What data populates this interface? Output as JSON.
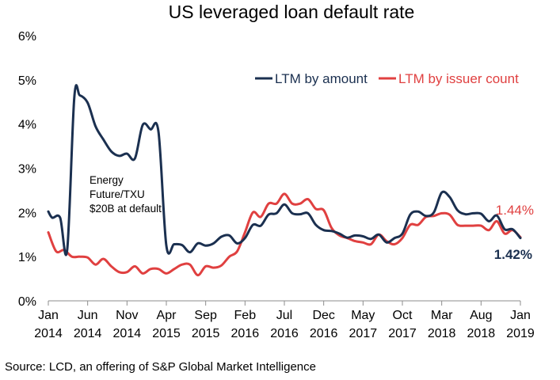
{
  "chart_data": {
    "type": "line",
    "title": "US leveraged loan default rate",
    "source": "Source: LCD, an offering of S&P Global Market Intelligence",
    "y_ticks": [
      "0%",
      "1%",
      "2%",
      "3%",
      "4%",
      "5%",
      "6%"
    ],
    "ylim": [
      0,
      6
    ],
    "xlim": [
      0,
      60
    ],
    "x_ticks": [
      {
        "month": 0,
        "line1": "Jan",
        "line2": "2014"
      },
      {
        "month": 5,
        "line1": "Jun",
        "line2": "2014"
      },
      {
        "month": 10,
        "line1": "Nov",
        "line2": "2014"
      },
      {
        "month": 15,
        "line1": "Apr",
        "line2": "2015"
      },
      {
        "month": 20,
        "line1": "Sep",
        "line2": "2015"
      },
      {
        "month": 25,
        "line1": "Feb",
        "line2": "2016"
      },
      {
        "month": 30,
        "line1": "Jul",
        "line2": "2016"
      },
      {
        "month": 35,
        "line1": "Dec",
        "line2": "2016"
      },
      {
        "month": 40,
        "line1": "May",
        "line2": "2017"
      },
      {
        "month": 45,
        "line1": "Oct",
        "line2": "2017"
      },
      {
        "month": 50,
        "line1": "Mar",
        "line2": "2018"
      },
      {
        "month": 55,
        "line1": "Aug",
        "line2": "2018"
      },
      {
        "month": 60,
        "line1": "Jan",
        "line2": "2019"
      }
    ],
    "legend_position": "top-right",
    "grid": false,
    "series": [
      {
        "name": "LTM by amount",
        "color": "#1b3050",
        "end_label": "1.42%",
        "points": [
          [
            0,
            2.02
          ],
          [
            0.5,
            1.88
          ],
          [
            1.5,
            1.88
          ],
          [
            2.4,
            1.15
          ],
          [
            3.3,
            4.6
          ],
          [
            4,
            4.65
          ],
          [
            5,
            4.48
          ],
          [
            6,
            3.95
          ],
          [
            7,
            3.65
          ],
          [
            8,
            3.38
          ],
          [
            9,
            3.28
          ],
          [
            10,
            3.33
          ],
          [
            11,
            3.22
          ],
          [
            12,
            3.98
          ],
          [
            13,
            3.88
          ],
          [
            14,
            3.82
          ],
          [
            15,
            1.25
          ],
          [
            16,
            1.28
          ],
          [
            17,
            1.26
          ],
          [
            18,
            1.1
          ],
          [
            19,
            1.3
          ],
          [
            20,
            1.25
          ],
          [
            21,
            1.3
          ],
          [
            22,
            1.45
          ],
          [
            23,
            1.48
          ],
          [
            24,
            1.3
          ],
          [
            25,
            1.42
          ],
          [
            26,
            1.72
          ],
          [
            27,
            1.7
          ],
          [
            28,
            1.95
          ],
          [
            29,
            1.98
          ],
          [
            30,
            2.18
          ],
          [
            31,
            1.98
          ],
          [
            32,
            1.96
          ],
          [
            33,
            1.98
          ],
          [
            34,
            1.72
          ],
          [
            35,
            1.6
          ],
          [
            36,
            1.58
          ],
          [
            37,
            1.52
          ],
          [
            38,
            1.43
          ],
          [
            39,
            1.48
          ],
          [
            40,
            1.46
          ],
          [
            41,
            1.4
          ],
          [
            42,
            1.5
          ],
          [
            43,
            1.32
          ],
          [
            44,
            1.42
          ],
          [
            45,
            1.52
          ],
          [
            46,
            1.95
          ],
          [
            47,
            2.02
          ],
          [
            48,
            1.92
          ],
          [
            49,
            2.0
          ],
          [
            50,
            2.45
          ],
          [
            51,
            2.35
          ],
          [
            52,
            2.05
          ],
          [
            53,
            1.96
          ],
          [
            54,
            1.98
          ],
          [
            55,
            1.97
          ],
          [
            56,
            1.8
          ],
          [
            57,
            1.93
          ],
          [
            58,
            1.62
          ],
          [
            59,
            1.62
          ],
          [
            60,
            1.42
          ]
        ]
      },
      {
        "name": "LTM by issuer count",
        "color": "#e04040",
        "end_label": "1.44%",
        "points": [
          [
            0,
            1.55
          ],
          [
            1,
            1.12
          ],
          [
            2,
            1.15
          ],
          [
            3,
            1.0
          ],
          [
            4,
            1.0
          ],
          [
            5,
            0.98
          ],
          [
            6,
            0.82
          ],
          [
            7,
            0.95
          ],
          [
            8,
            0.78
          ],
          [
            9,
            0.65
          ],
          [
            10,
            0.65
          ],
          [
            11,
            0.78
          ],
          [
            12,
            0.62
          ],
          [
            13,
            0.72
          ],
          [
            14,
            0.72
          ],
          [
            15,
            0.62
          ],
          [
            16,
            0.72
          ],
          [
            17,
            0.82
          ],
          [
            18,
            0.82
          ],
          [
            19,
            0.58
          ],
          [
            20,
            0.78
          ],
          [
            21,
            0.75
          ],
          [
            22,
            0.8
          ],
          [
            23,
            1.0
          ],
          [
            24,
            1.12
          ],
          [
            25,
            1.55
          ],
          [
            26,
            2.0
          ],
          [
            27,
            1.9
          ],
          [
            28,
            2.2
          ],
          [
            29,
            2.2
          ],
          [
            30,
            2.42
          ],
          [
            31,
            2.2
          ],
          [
            32,
            2.2
          ],
          [
            33,
            2.3
          ],
          [
            34,
            2.08
          ],
          [
            35,
            2.05
          ],
          [
            36,
            1.65
          ],
          [
            37,
            1.48
          ],
          [
            38,
            1.42
          ],
          [
            39,
            1.35
          ],
          [
            40,
            1.32
          ],
          [
            41,
            1.28
          ],
          [
            42,
            1.5
          ],
          [
            43,
            1.35
          ],
          [
            44,
            1.28
          ],
          [
            45,
            1.42
          ],
          [
            46,
            1.72
          ],
          [
            47,
            1.72
          ],
          [
            48,
            1.9
          ],
          [
            49,
            1.92
          ],
          [
            50,
            1.98
          ],
          [
            51,
            1.95
          ],
          [
            52,
            1.72
          ],
          [
            53,
            1.7
          ],
          [
            54,
            1.7
          ],
          [
            55,
            1.7
          ],
          [
            56,
            1.6
          ],
          [
            57,
            1.8
          ],
          [
            58,
            1.52
          ],
          [
            59,
            1.6
          ],
          [
            60,
            1.44
          ]
        ]
      }
    ],
    "annotation": [
      "Energy",
      "Future/TXU",
      "$20B at default"
    ]
  }
}
